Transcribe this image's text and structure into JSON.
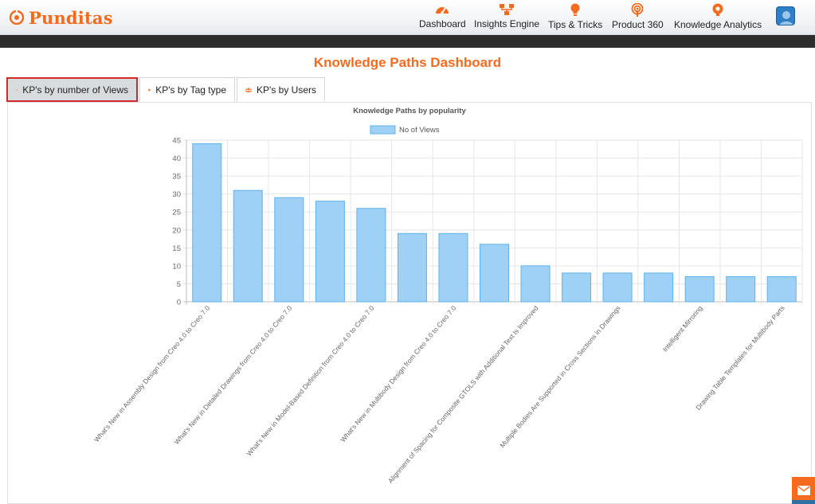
{
  "header": {
    "brand": "Punditas",
    "nav": [
      {
        "label": "Dashboard",
        "icon": "speedometer-icon"
      },
      {
        "label": "Insights Engine",
        "icon": "hierarchy-icon"
      },
      {
        "label": "Tips & Tricks",
        "icon": "lightbulb-icon"
      },
      {
        "label": "Product 360",
        "icon": "broadcast-icon"
      },
      {
        "label": "Knowledge Analytics",
        "icon": "analytics-gear-icon"
      }
    ],
    "accent": "#f46b1f"
  },
  "page": {
    "title": "Knowledge Paths Dashboard"
  },
  "tabs": [
    {
      "label": "KP's by number of Views",
      "icon": "eye-icon",
      "active": true
    },
    {
      "label": "KP's by Tag type",
      "icon": "tag-icon",
      "active": false
    },
    {
      "label": "KP's by Users",
      "icon": "users-icon",
      "active": false
    }
  ],
  "chart_data": {
    "type": "bar",
    "title": "Knowledge Paths by popularity",
    "legend": "top-center",
    "grid": true,
    "xlabel": "",
    "ylabel": "",
    "ylim": [
      0,
      45
    ],
    "yticks": [
      0,
      5,
      10,
      15,
      20,
      25,
      30,
      35,
      40,
      45
    ],
    "bar_color": "#9fd1f6",
    "bar_border": "#5eb2ea",
    "categories": [
      "What's New in Assembly Design from Creo 4.0 to Creo 7.0",
      "",
      "What's New in Detailed Drawings from Creo 4.0 to Creo 7.0",
      "",
      "What's New in Model-Based Definition from Creo 4.0 to Creo 7.0",
      "",
      "What's New in Multibody Design from Creo 4.0 to Creo 7.0",
      "",
      "Alignment of Spacing for Composite GTOLS with Additional Text Is Improved",
      "",
      "Multiple Bodies Are Supported in Cross Sections in Drawings",
      "",
      "Intelligent Mirroring",
      "",
      "Drawing Table Templates for Multibody Parts"
    ],
    "series": [
      {
        "name": "No of Views",
        "values": [
          44,
          31,
          29,
          28,
          26,
          19,
          19,
          16,
          10,
          8,
          8,
          8,
          7,
          7,
          7
        ]
      }
    ]
  }
}
